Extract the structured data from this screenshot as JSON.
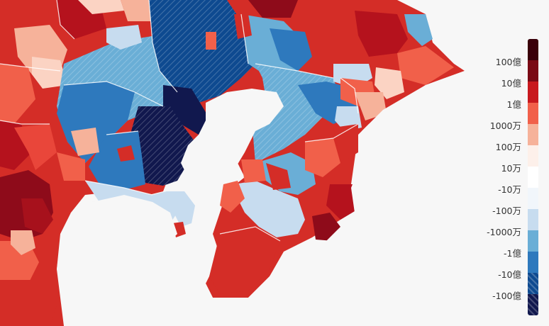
{
  "map": {
    "colors": {
      "ocean": "#f7f7f7",
      "boundary": "#ffffff",
      "red_darkest": "#4a0010",
      "red_dark": "#8e0b1a",
      "red": "#d42d27",
      "red_mid": "#f1604a",
      "red_light": "#f6b29a",
      "red_faint": "#fdf0ea",
      "white": "#ffffff",
      "blue_faint": "#f1f6fb",
      "blue_light": "#c7dcef",
      "blue_mid": "#6aaed6",
      "blue": "#2e79bd",
      "blue_dark": "#0e4a90",
      "blue_darkest": "#11184e"
    }
  },
  "legend": {
    "labels": [
      "100億",
      "10億",
      "1億",
      "1000万",
      "100万",
      "10万",
      "-10万",
      "-100万",
      "-1000万",
      "-1億",
      "-10億",
      "-100億"
    ],
    "swatch_colors": [
      "#3a000a",
      "#7a0a15",
      "#c8191e",
      "#f1604a",
      "#f6b29a",
      "#fdf0ea",
      "#ffffff",
      "#f1f6fb",
      "#c7dcef",
      "#6aaed6",
      "#2e79bd",
      "#0e4a90",
      "#11184e"
    ]
  }
}
